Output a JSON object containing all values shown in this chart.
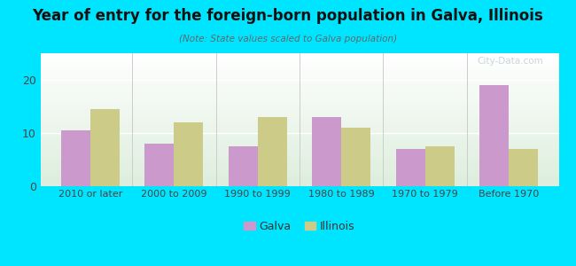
{
  "title": "Year of entry for the foreign-born population in Galva, Illinois",
  "subtitle": "(Note: State values scaled to Galva population)",
  "categories": [
    "2010 or later",
    "2000 to 2009",
    "1990 to 1999",
    "1980 to 1989",
    "1970 to 1979",
    "Before 1970"
  ],
  "galva_values": [
    10.5,
    8.0,
    7.5,
    13.0,
    7.0,
    19.0
  ],
  "illinois_values": [
    14.5,
    12.0,
    13.0,
    11.0,
    7.5,
    7.0
  ],
  "galva_color": "#cc99cc",
  "illinois_color": "#cccc88",
  "bg_outer": "#00e5ff",
  "bg_chart_top": "#ffffff",
  "bg_chart_bottom": "#ddeedd",
  "ylim": [
    0,
    25
  ],
  "yticks": [
    0,
    10,
    20
  ],
  "bar_width": 0.35,
  "legend_labels": [
    "Galva",
    "Illinois"
  ],
  "watermark": "City-Data.com"
}
